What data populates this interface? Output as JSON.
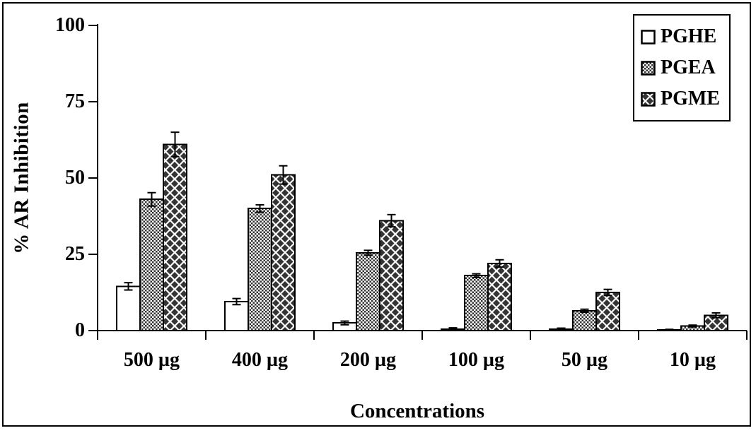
{
  "chart_data": {
    "type": "bar",
    "title": "",
    "xlabel": "Concentrations",
    "ylabel": "% AR Inhibition",
    "ylim": [
      0,
      100
    ],
    "yticks": [
      0,
      25,
      50,
      75,
      100
    ],
    "grid": false,
    "legend_position": "top-right",
    "categories": [
      "500 µg",
      "400 µg",
      "200 µg",
      "100 µg",
      "50 µg",
      "10 µg"
    ],
    "series": [
      {
        "name": "PGHE",
        "pattern": "plain-white",
        "values": [
          14.5,
          9.5,
          2.5,
          0.5,
          0.5,
          0.2
        ],
        "errors": [
          1.2,
          1.0,
          0.6,
          0.4,
          0.3,
          0.2
        ]
      },
      {
        "name": "PGEA",
        "pattern": "fine-checker",
        "values": [
          43,
          40,
          25.5,
          18,
          6.5,
          1.5
        ],
        "errors": [
          2.2,
          1.2,
          0.8,
          0.6,
          0.5,
          0.3
        ]
      },
      {
        "name": "PGME",
        "pattern": "diamond-lattice",
        "values": [
          61,
          51,
          36,
          22,
          12.5,
          5
        ],
        "errors": [
          4.0,
          3.0,
          2.0,
          1.2,
          1.0,
          0.8
        ]
      }
    ]
  },
  "colors": {
    "foreground": "#000000",
    "background": "#ffffff",
    "pattern_dark": "#343434"
  }
}
